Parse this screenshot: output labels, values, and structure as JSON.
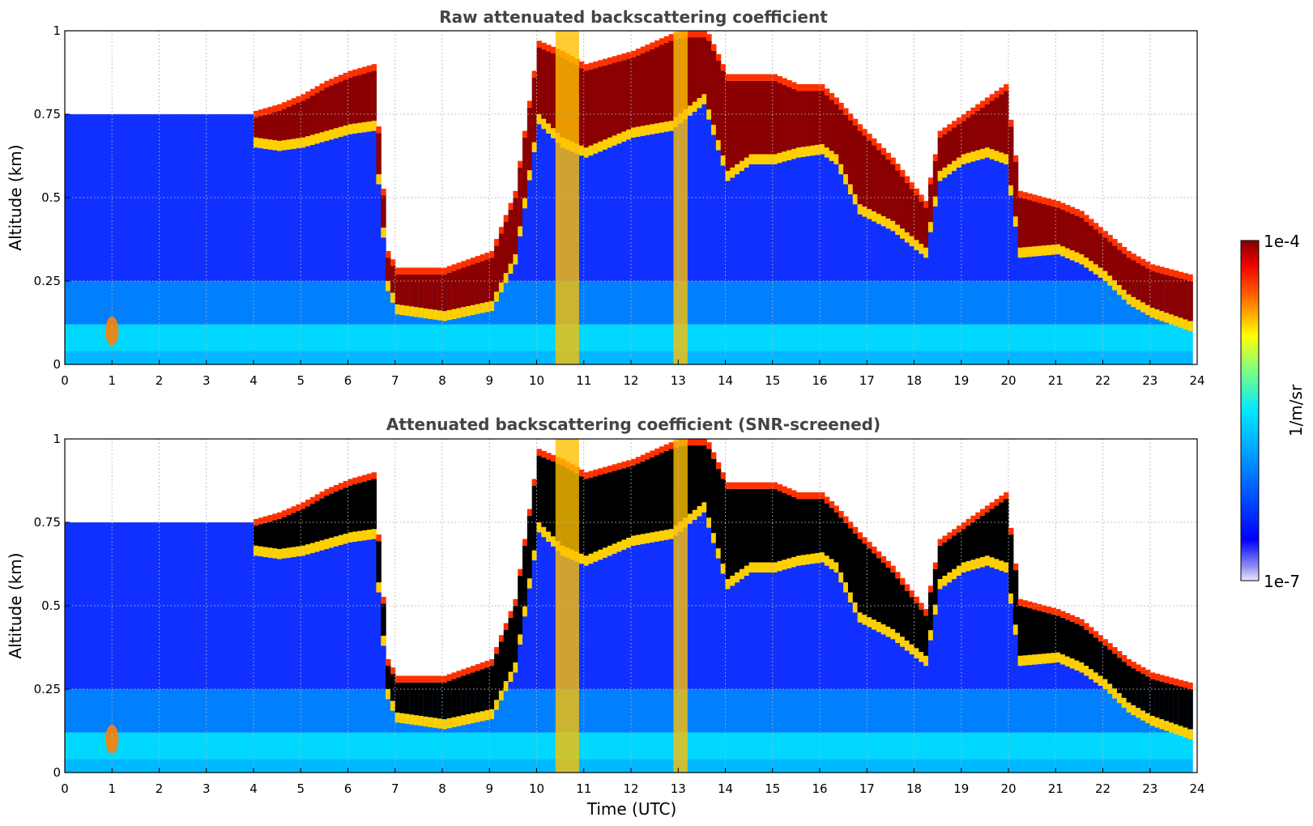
{
  "chart_data": [
    {
      "type": "heatmap",
      "title": "Raw attenuated backscattering coefficient",
      "xlabel": "",
      "ylabel": "Altitude (km)",
      "xlim": [
        0,
        24
      ],
      "ylim": [
        0,
        1
      ],
      "x_ticks": [
        "0",
        "1",
        "2",
        "3",
        "4",
        "5",
        "6",
        "7",
        "8",
        "9",
        "10",
        "11",
        "12",
        "13",
        "14",
        "15",
        "16",
        "17",
        "18",
        "19",
        "20",
        "21",
        "22",
        "23",
        "24"
      ],
      "y_ticks": [
        "0",
        "0.25",
        "0.5",
        "0.75",
        "1"
      ],
      "grid": true,
      "cloud_layer": {
        "time_utc": [
          0,
          2,
          3,
          4,
          4.5,
          5,
          5.5,
          6,
          6.5,
          6.8,
          7,
          8,
          9,
          9.5,
          10,
          10.5,
          11,
          12,
          12.8,
          13.5,
          14,
          14.5,
          15,
          15.5,
          16,
          16.3,
          16.8,
          17.5,
          18.2,
          18.5,
          19,
          19.5,
          19.9,
          20.2,
          21,
          21.5,
          22,
          22.5,
          23,
          23.8
        ],
        "base_km": [
          null,
          null,
          null,
          0.65,
          0.64,
          0.65,
          0.67,
          0.69,
          0.7,
          0.22,
          0.15,
          0.13,
          0.16,
          0.3,
          0.72,
          0.65,
          0.62,
          0.68,
          0.7,
          0.78,
          0.55,
          0.6,
          0.6,
          0.62,
          0.63,
          0.6,
          0.45,
          0.4,
          0.32,
          0.55,
          0.6,
          0.62,
          0.6,
          0.32,
          0.33,
          0.3,
          0.25,
          0.18,
          0.14,
          0.1
        ],
        "top_km": [
          null,
          null,
          null,
          0.74,
          0.76,
          0.79,
          0.83,
          0.86,
          0.88,
          0.32,
          0.27,
          0.27,
          0.32,
          0.5,
          0.95,
          0.92,
          0.88,
          0.92,
          0.97,
          1.0,
          0.85,
          0.85,
          0.85,
          0.82,
          0.82,
          0.78,
          0.7,
          0.6,
          0.47,
          0.68,
          0.73,
          0.78,
          0.82,
          0.5,
          0.47,
          0.44,
          0.38,
          0.32,
          0.28,
          0.25
        ]
      },
      "precipitation_shafts_utc": [
        [
          10.4,
          10.9
        ],
        [
          12.9,
          13.2
        ]
      ],
      "surface_feature": {
        "time_utc": 1.0,
        "altitude_km": 0.1
      }
    },
    {
      "type": "heatmap",
      "title": "Attenuated backscattering coefficient (SNR-screened)",
      "xlabel": "Time (UTC)",
      "ylabel": "Altitude (km)",
      "xlim": [
        0,
        24
      ],
      "ylim": [
        0,
        1
      ],
      "x_ticks": [
        "0",
        "1",
        "2",
        "3",
        "4",
        "5",
        "6",
        "7",
        "8",
        "9",
        "10",
        "11",
        "12",
        "13",
        "14",
        "15",
        "16",
        "17",
        "18",
        "19",
        "20",
        "21",
        "22",
        "23",
        "24"
      ],
      "y_ticks": [
        "0",
        "0.25",
        "0.5",
        "0.75",
        "1"
      ],
      "grid": true,
      "screened_out_color": "#000000"
    }
  ],
  "colorbar": {
    "label": "1/m/sr",
    "max_label": "1e-4",
    "min_label": "1e-7",
    "scale": "log",
    "colormap": [
      "#e8e8ff",
      "#0000ff",
      "#0090ff",
      "#00e8ff",
      "#80ff80",
      "#ffff00",
      "#ff8000",
      "#ff0000",
      "#800000"
    ]
  }
}
